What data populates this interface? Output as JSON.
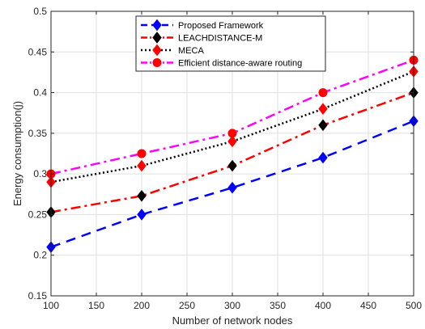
{
  "chart_data": {
    "type": "line",
    "title": "",
    "xlabel": "Number of network nodes",
    "ylabel": "Energy consumption(j)",
    "xlim": [
      100,
      500
    ],
    "ylim": [
      0.15,
      0.5
    ],
    "x": [
      100,
      200,
      300,
      400,
      500
    ],
    "xticks": [
      "100",
      "150",
      "200",
      "250",
      "300",
      "350",
      "400",
      "450",
      "500"
    ],
    "yticks": [
      "0.15",
      "0.2",
      "0.25",
      "0.3",
      "0.35",
      "0.4",
      "0.45",
      "0.5"
    ],
    "grid": true,
    "legend_position": "top-center",
    "series": [
      {
        "name": "Proposed Framework",
        "values": [
          0.21,
          0.25,
          0.283,
          0.32,
          0.365
        ],
        "color": "#0000ff",
        "line_style": "dashed",
        "marker": "diamond"
      },
      {
        "name": "LEACHDISTANCE-M",
        "values": [
          0.253,
          0.273,
          0.31,
          0.36,
          0.4
        ],
        "color": "#ff0000",
        "line_style": "dash-dot",
        "marker": "diamond",
        "marker_color": "#000000"
      },
      {
        "name": "MECA",
        "values": [
          0.29,
          0.31,
          0.34,
          0.38,
          0.426
        ],
        "color": "#000000",
        "line_style": "dotted",
        "marker": "diamond",
        "marker_color": "#ff0000"
      },
      {
        "name": "Efficient distance-aware routing",
        "values": [
          0.3,
          0.325,
          0.35,
          0.4,
          0.44
        ],
        "color": "#ff00ff",
        "line_style": "dash-dot",
        "marker": "circle",
        "marker_color": "#ff0000"
      }
    ]
  }
}
